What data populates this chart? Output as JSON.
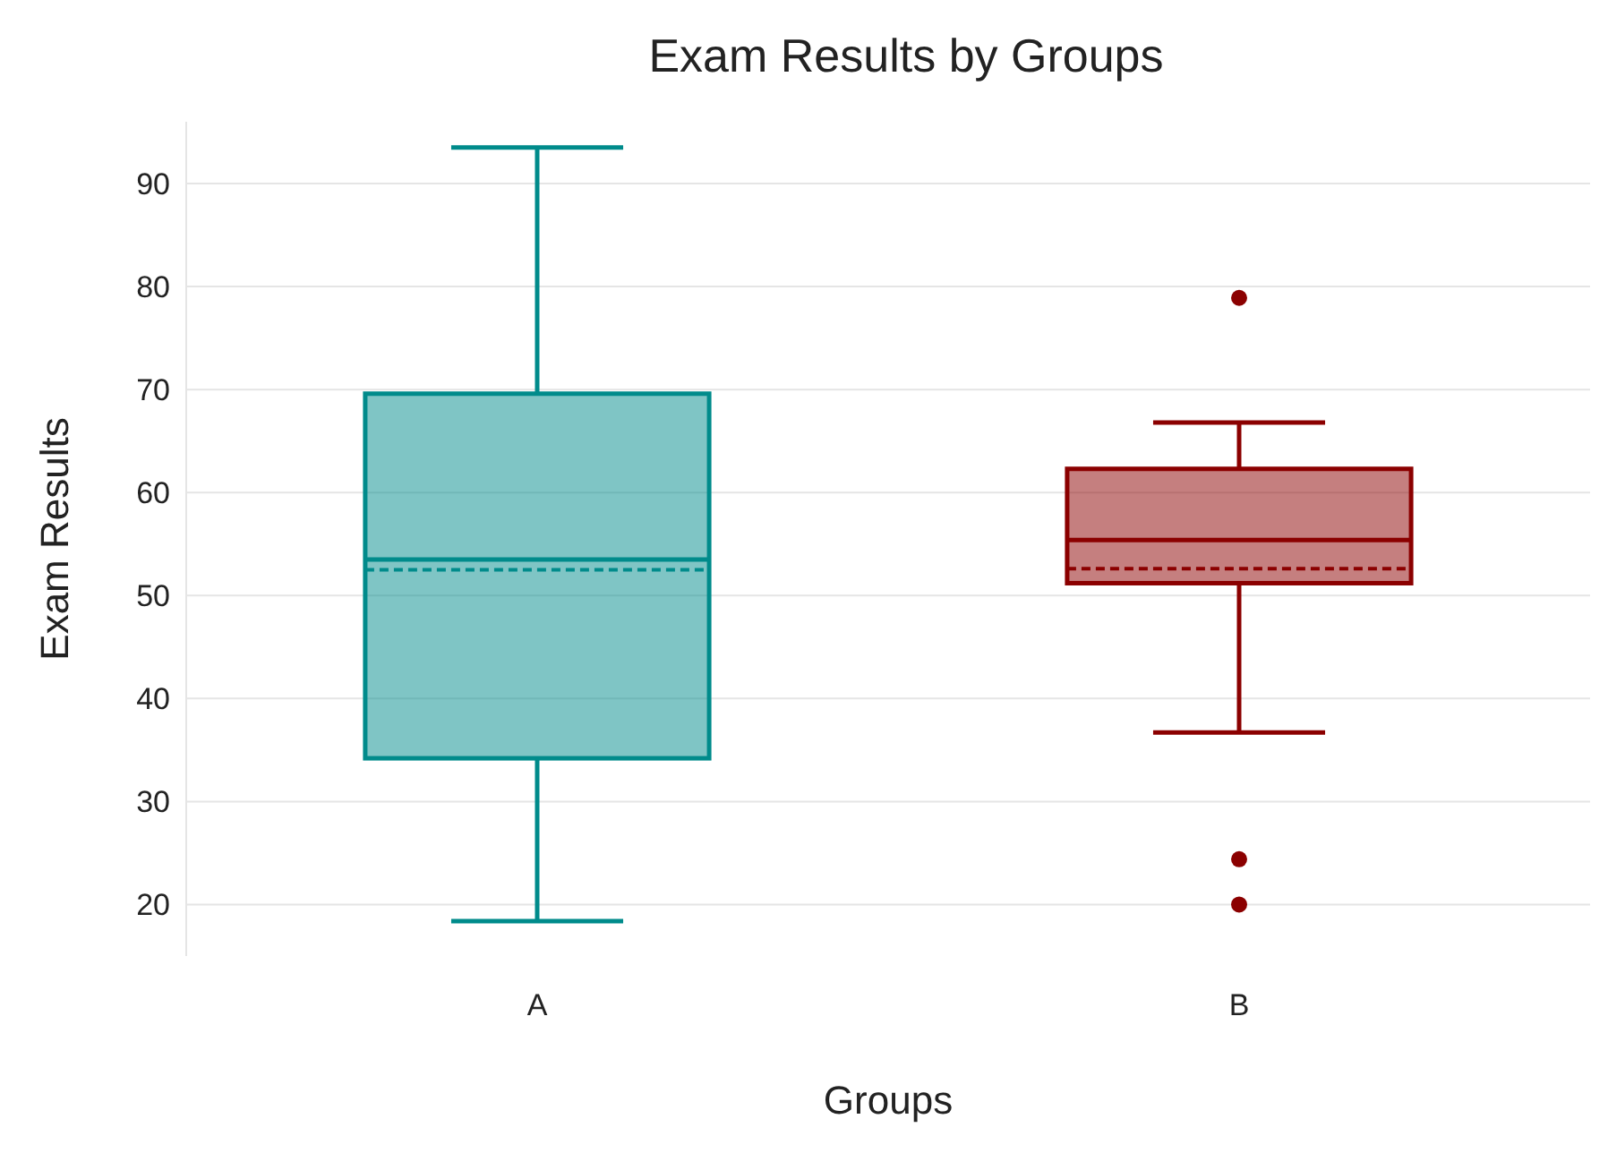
{
  "chart_data": {
    "type": "box",
    "title": "Exam Results by Groups",
    "xlabel": "Groups",
    "ylabel": "Exam Results",
    "categories": [
      "A",
      "B"
    ],
    "colors": [
      "#008b8b",
      "#8b0000"
    ],
    "boxes": [
      {
        "low": 18.4,
        "q1": 34.2,
        "median": 53.5,
        "q3": 69.6,
        "high": 93.5,
        "mean": 52.5
      },
      {
        "low": 36.7,
        "q1": 51.2,
        "median": 55.4,
        "q3": 62.3,
        "high": 66.8,
        "mean": 52.6,
        "outliers": [
          78.9,
          24.4,
          20
        ]
      }
    ],
    "ylim": [
      15,
      96
    ],
    "yticks": [
      20,
      30,
      40,
      50,
      60,
      70,
      80,
      90
    ],
    "grid": "y"
  }
}
